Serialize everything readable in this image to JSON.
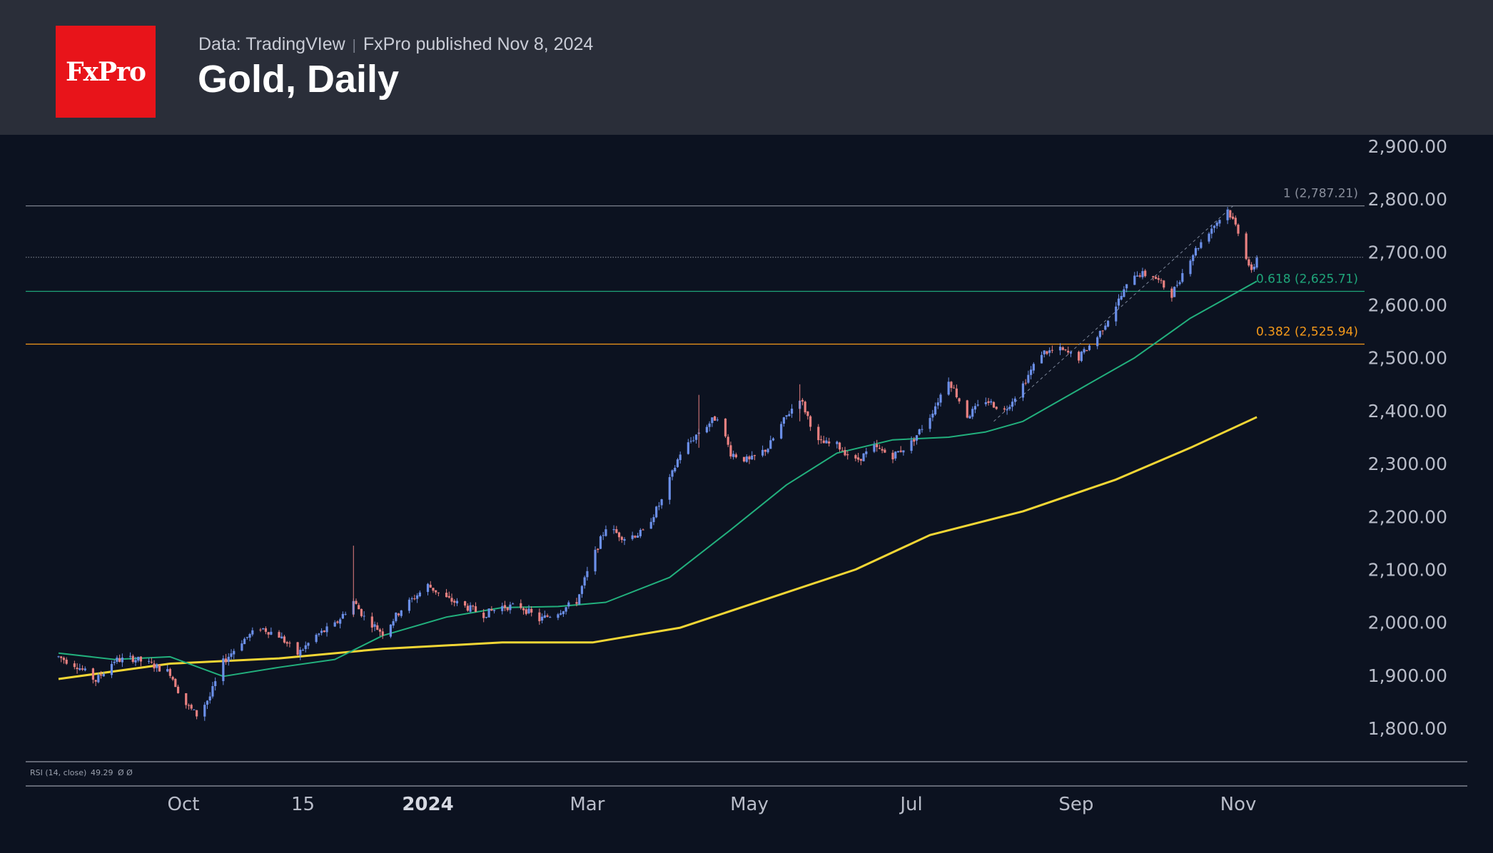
{
  "header": {
    "logo_text": "FxPro",
    "data_source": "Data: TradingVIew",
    "published": "FxPro published Nov 8, 2024",
    "title": "Gold, Daily"
  },
  "colors": {
    "background": "#0c1220",
    "header_bg": "#2a2e39",
    "logo_red": "#e8141a",
    "bull_candle": "#6b8fe8",
    "bear_candle": "#e88080",
    "ma_short": "#22b07d",
    "ma_long": "#f2d635",
    "fib_1": "#8a8f9c",
    "fib_0618": "#1fa67a",
    "fib_0382": "#f59a1a"
  },
  "chart_data": {
    "type": "candlestick",
    "title": "Gold, Daily",
    "x_ticks": [
      "Oct",
      "15",
      "2024",
      "Mar",
      "May",
      "Jul",
      "Sep",
      "Nov"
    ],
    "x_tick_dates": [
      "2023-10-01",
      "2023-11-15",
      "2024-01-01",
      "2024-03-01",
      "2024-05-01",
      "2024-07-01",
      "2024-09-01",
      "2024-11-01"
    ],
    "y_ticks": [
      "2,900.00",
      "2,800.00",
      "2,700.00",
      "2,600.00",
      "2,500.00",
      "2,400.00",
      "2,300.00",
      "2,200.00",
      "2,100.00",
      "2,000.00",
      "1,900.00",
      "1,800.00"
    ],
    "ylim": [
      1775,
      2920
    ],
    "close_path": [
      [
        "2023-08-15",
        1935
      ],
      [
        "2023-08-22",
        1918
      ],
      [
        "2023-08-29",
        1890
      ],
      [
        "2023-09-05",
        1928
      ],
      [
        "2023-09-12",
        1932
      ],
      [
        "2023-09-19",
        1920
      ],
      [
        "2023-09-26",
        1905
      ],
      [
        "2023-10-01",
        1850
      ],
      [
        "2023-10-06",
        1825
      ],
      [
        "2023-10-11",
        1860
      ],
      [
        "2023-10-16",
        1925
      ],
      [
        "2023-10-23",
        1965
      ],
      [
        "2023-10-30",
        1990
      ],
      [
        "2023-11-06",
        1975
      ],
      [
        "2023-11-13",
        1940
      ],
      [
        "2023-11-20",
        1975
      ],
      [
        "2023-11-27",
        1995
      ],
      [
        "2023-12-04",
        2040
      ],
      [
        "2023-12-08",
        2010
      ],
      [
        "2023-12-15",
        1980
      ],
      [
        "2023-12-22",
        2025
      ],
      [
        "2024-01-01",
        2070
      ],
      [
        "2024-01-08",
        2045
      ],
      [
        "2024-01-15",
        2030
      ],
      [
        "2024-01-22",
        2015
      ],
      [
        "2024-01-29",
        2030
      ],
      [
        "2024-02-05",
        2030
      ],
      [
        "2024-02-12",
        2005
      ],
      [
        "2024-02-19",
        2020
      ],
      [
        "2024-02-26",
        2040
      ],
      [
        "2024-03-03",
        2120
      ],
      [
        "2024-03-08",
        2180
      ],
      [
        "2024-03-15",
        2160
      ],
      [
        "2024-03-22",
        2170
      ],
      [
        "2024-03-29",
        2230
      ],
      [
        "2024-04-05",
        2320
      ],
      [
        "2024-04-12",
        2360
      ],
      [
        "2024-04-19",
        2390
      ],
      [
        "2024-04-24",
        2320
      ],
      [
        "2024-05-01",
        2305
      ],
      [
        "2024-05-08",
        2330
      ],
      [
        "2024-05-15",
        2390
      ],
      [
        "2024-05-20",
        2425
      ],
      [
        "2024-05-27",
        2340
      ],
      [
        "2024-06-03",
        2335
      ],
      [
        "2024-06-10",
        2305
      ],
      [
        "2024-06-17",
        2330
      ],
      [
        "2024-06-24",
        2315
      ],
      [
        "2024-07-01",
        2340
      ],
      [
        "2024-07-08",
        2390
      ],
      [
        "2024-07-15",
        2460
      ],
      [
        "2024-07-22",
        2390
      ],
      [
        "2024-07-29",
        2420
      ],
      [
        "2024-08-05",
        2400
      ],
      [
        "2024-08-12",
        2450
      ],
      [
        "2024-08-19",
        2510
      ],
      [
        "2024-08-26",
        2515
      ],
      [
        "2024-09-02",
        2500
      ],
      [
        "2024-09-09",
        2540
      ],
      [
        "2024-09-16",
        2600
      ],
      [
        "2024-09-23",
        2660
      ],
      [
        "2024-09-30",
        2655
      ],
      [
        "2024-10-07",
        2620
      ],
      [
        "2024-10-14",
        2690
      ],
      [
        "2024-10-21",
        2740
      ],
      [
        "2024-10-28",
        2780
      ],
      [
        "2024-11-01",
        2740
      ],
      [
        "2024-11-06",
        2660
      ],
      [
        "2024-11-08",
        2690
      ]
    ],
    "ma_short_path": [
      [
        "2023-08-15",
        1942
      ],
      [
        "2023-09-05",
        1930
      ],
      [
        "2023-09-26",
        1935
      ],
      [
        "2023-10-16",
        1898
      ],
      [
        "2023-11-06",
        1915
      ],
      [
        "2023-11-27",
        1930
      ],
      [
        "2023-12-15",
        1975
      ],
      [
        "2024-01-08",
        2010
      ],
      [
        "2024-01-29",
        2028
      ],
      [
        "2024-02-19",
        2030
      ],
      [
        "2024-03-08",
        2038
      ],
      [
        "2024-04-01",
        2085
      ],
      [
        "2024-04-24",
        2175
      ],
      [
        "2024-05-15",
        2260
      ],
      [
        "2024-06-03",
        2320
      ],
      [
        "2024-06-24",
        2345
      ],
      [
        "2024-07-15",
        2350
      ],
      [
        "2024-07-29",
        2360
      ],
      [
        "2024-08-12",
        2380
      ],
      [
        "2024-09-02",
        2440
      ],
      [
        "2024-09-23",
        2500
      ],
      [
        "2024-10-14",
        2575
      ],
      [
        "2024-11-08",
        2645
      ]
    ],
    "ma_long_path": [
      [
        "2023-08-15",
        1893
      ],
      [
        "2023-09-26",
        1922
      ],
      [
        "2023-11-06",
        1932
      ],
      [
        "2023-12-15",
        1950
      ],
      [
        "2024-01-29",
        1962
      ],
      [
        "2024-03-03",
        1962
      ],
      [
        "2024-04-05",
        1990
      ],
      [
        "2024-05-08",
        2045
      ],
      [
        "2024-06-10",
        2100
      ],
      [
        "2024-07-08",
        2165
      ],
      [
        "2024-08-12",
        2210
      ],
      [
        "2024-09-16",
        2270
      ],
      [
        "2024-10-14",
        2330
      ],
      [
        "2024-11-08",
        2388
      ]
    ],
    "trendline": [
      [
        "2024-08-01",
        2380
      ],
      [
        "2024-10-30",
        2787
      ]
    ],
    "price_line": 2690,
    "fib_levels": [
      {
        "level": 1,
        "value": 2787.21,
        "label": "1 (2,787.21)"
      },
      {
        "level": 0.618,
        "value": 2625.71,
        "label": "0.618 (2,625.71)"
      },
      {
        "level": 0.382,
        "value": 2525.94,
        "label": "0.382 (2,525.94)"
      }
    ],
    "rsi_label": "RSI (14, close)",
    "rsi_value": "49.29",
    "rsi_extra": "Ø Ø"
  }
}
